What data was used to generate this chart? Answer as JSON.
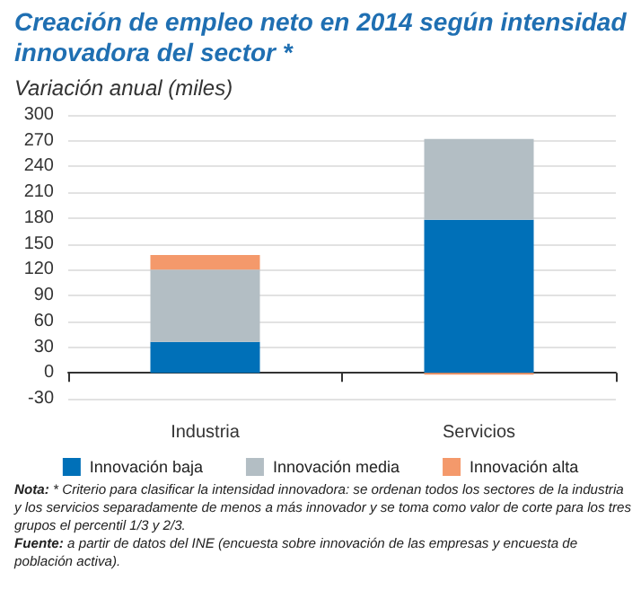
{
  "chart_data": {
    "type": "bar",
    "title": "Creación de empleo neto  en 2014 según intensidad innovadora del sector *",
    "subtitle": "Variación anual (miles)",
    "categories": [
      "Industria",
      "Servicios"
    ],
    "stacked": true,
    "series": [
      {
        "name": "Innovación baja",
        "color": "#0070b8",
        "values": [
          36,
          178
        ]
      },
      {
        "name": "Innovación media",
        "color": "#b3bec4",
        "values": [
          84,
          94
        ]
      },
      {
        "name": "Innovación alta",
        "color": "#f4996b",
        "values": [
          17,
          -2
        ]
      }
    ],
    "ylim": [
      -30,
      300
    ],
    "yticks": [
      -30,
      0,
      30,
      60,
      90,
      120,
      150,
      180,
      210,
      240,
      270,
      300
    ],
    "grid": "y",
    "legend": "bottom",
    "annotations": [
      "Nota: * Criterio para clasificar la intensidad innovadora: se ordenan todos los sectores de la industria y los servicios separadamente de menos a más innovador y se toma como valor de corte para los tres grupos el percentil 1/3 y 2/3.",
      "Fuente: a partir de datos del INE (encuesta sobre innovación de las empresas y encuesta de población activa)."
    ]
  }
}
